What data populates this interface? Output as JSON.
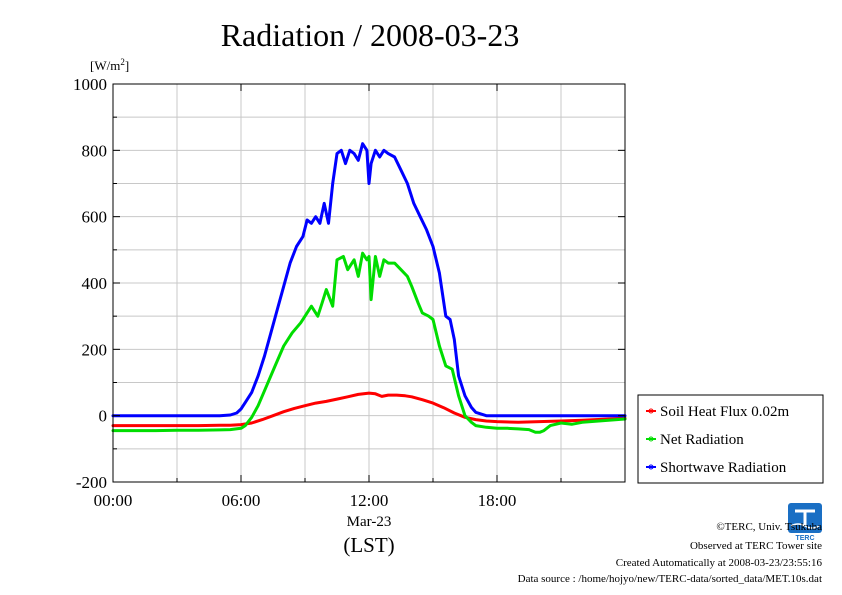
{
  "chart_data": {
    "type": "line",
    "title": "Radiation / 2008-03-23",
    "ylabel_unit": "[W/m",
    "ylabel_unit_sup": "2",
    "ylabel_unit_close": "]",
    "xlabel_date": "Mar-23",
    "xlabel": "(LST)",
    "x_range_hours": [
      0,
      24
    ],
    "ylim": [
      -200,
      1000
    ],
    "x_ticks": [
      {
        "hour": 0,
        "label": "00:00"
      },
      {
        "hour": 6,
        "label": "06:00"
      },
      {
        "hour": 12,
        "label": "12:00"
      },
      {
        "hour": 18,
        "label": "18:00"
      }
    ],
    "y_ticks": [
      {
        "value": 1000,
        "label": "1000"
      },
      {
        "value": 800,
        "label": "800"
      },
      {
        "value": 600,
        "label": "600"
      },
      {
        "value": 400,
        "label": "400"
      },
      {
        "value": 200,
        "label": "200"
      },
      {
        "value": 0,
        "label": "0"
      },
      {
        "value": -200,
        "label": "-200"
      }
    ],
    "grid": true,
    "legend_position": "right-bottom, outside plot",
    "series": [
      {
        "name": "Soil Heat Flux 0.02m",
        "color": "#ff0000",
        "points": [
          [
            0,
            -30
          ],
          [
            2,
            -30
          ],
          [
            4,
            -30
          ],
          [
            5,
            -29
          ],
          [
            5.5,
            -29
          ],
          [
            6,
            -27
          ],
          [
            6.5,
            -22
          ],
          [
            7,
            -12
          ],
          [
            7.5,
            0
          ],
          [
            8,
            12
          ],
          [
            8.5,
            22
          ],
          [
            9,
            30
          ],
          [
            9.5,
            38
          ],
          [
            10,
            43
          ],
          [
            10.5,
            50
          ],
          [
            11,
            57
          ],
          [
            11.5,
            64
          ],
          [
            12,
            68
          ],
          [
            12.3,
            66
          ],
          [
            12.6,
            58
          ],
          [
            12.9,
            62
          ],
          [
            13.3,
            62
          ],
          [
            13.7,
            60
          ],
          [
            14,
            57
          ],
          [
            14.5,
            48
          ],
          [
            15,
            38
          ],
          [
            15.5,
            24
          ],
          [
            16,
            8
          ],
          [
            16.5,
            -5
          ],
          [
            17,
            -12
          ],
          [
            17.5,
            -16
          ],
          [
            18,
            -18
          ],
          [
            19,
            -20
          ],
          [
            20,
            -18
          ],
          [
            21,
            -16
          ],
          [
            22,
            -14
          ],
          [
            23,
            -11
          ],
          [
            24,
            -8
          ]
        ]
      },
      {
        "name": "Net Radiation",
        "color": "#00dd00",
        "points": [
          [
            0,
            -45
          ],
          [
            1,
            -45
          ],
          [
            2,
            -45
          ],
          [
            3,
            -44
          ],
          [
            4,
            -44
          ],
          [
            5,
            -43
          ],
          [
            5.5,
            -42
          ],
          [
            6,
            -38
          ],
          [
            6.2,
            -30
          ],
          [
            6.5,
            -5
          ],
          [
            6.8,
            30
          ],
          [
            7.2,
            90
          ],
          [
            7.6,
            150
          ],
          [
            8,
            210
          ],
          [
            8.4,
            250
          ],
          [
            8.8,
            280
          ],
          [
            9,
            300
          ],
          [
            9.3,
            330
          ],
          [
            9.6,
            300
          ],
          [
            9.8,
            340
          ],
          [
            10,
            380
          ],
          [
            10.3,
            330
          ],
          [
            10.5,
            470
          ],
          [
            10.8,
            480
          ],
          [
            11,
            440
          ],
          [
            11.3,
            470
          ],
          [
            11.5,
            420
          ],
          [
            11.7,
            490
          ],
          [
            11.9,
            470
          ],
          [
            12,
            480
          ],
          [
            12.1,
            350
          ],
          [
            12.3,
            480
          ],
          [
            12.5,
            420
          ],
          [
            12.7,
            470
          ],
          [
            12.9,
            460
          ],
          [
            13.2,
            460
          ],
          [
            13.5,
            440
          ],
          [
            13.8,
            420
          ],
          [
            14,
            390
          ],
          [
            14.3,
            340
          ],
          [
            14.5,
            310
          ],
          [
            14.8,
            300
          ],
          [
            15,
            290
          ],
          [
            15.3,
            210
          ],
          [
            15.6,
            150
          ],
          [
            15.9,
            140
          ],
          [
            16.2,
            60
          ],
          [
            16.5,
            0
          ],
          [
            16.8,
            -20
          ],
          [
            17,
            -30
          ],
          [
            17.5,
            -35
          ],
          [
            18,
            -38
          ],
          [
            18.5,
            -38
          ],
          [
            19,
            -40
          ],
          [
            19.5,
            -42
          ],
          [
            19.8,
            -50
          ],
          [
            20,
            -50
          ],
          [
            20.2,
            -45
          ],
          [
            20.5,
            -30
          ],
          [
            21,
            -22
          ],
          [
            21.5,
            -26
          ],
          [
            22,
            -20
          ],
          [
            23,
            -15
          ],
          [
            24,
            -10
          ]
        ]
      },
      {
        "name": "Shortwave Radiation",
        "color": "#0000ff",
        "points": [
          [
            0,
            0
          ],
          [
            1,
            0
          ],
          [
            2,
            0
          ],
          [
            3,
            0
          ],
          [
            4,
            0
          ],
          [
            5,
            0
          ],
          [
            5.5,
            2
          ],
          [
            5.8,
            8
          ],
          [
            6,
            20
          ],
          [
            6.2,
            40
          ],
          [
            6.5,
            70
          ],
          [
            6.8,
            120
          ],
          [
            7.1,
            180
          ],
          [
            7.4,
            250
          ],
          [
            7.7,
            320
          ],
          [
            8,
            390
          ],
          [
            8.3,
            460
          ],
          [
            8.6,
            510
          ],
          [
            8.9,
            540
          ],
          [
            9.1,
            590
          ],
          [
            9.3,
            580
          ],
          [
            9.5,
            600
          ],
          [
            9.7,
            580
          ],
          [
            9.9,
            640
          ],
          [
            10.1,
            580
          ],
          [
            10.3,
            700
          ],
          [
            10.5,
            790
          ],
          [
            10.7,
            800
          ],
          [
            10.9,
            760
          ],
          [
            11.1,
            800
          ],
          [
            11.3,
            790
          ],
          [
            11.5,
            770
          ],
          [
            11.7,
            820
          ],
          [
            11.9,
            800
          ],
          [
            12,
            700
          ],
          [
            12.1,
            760
          ],
          [
            12.3,
            800
          ],
          [
            12.5,
            780
          ],
          [
            12.7,
            800
          ],
          [
            12.9,
            790
          ],
          [
            13.2,
            780
          ],
          [
            13.5,
            740
          ],
          [
            13.8,
            700
          ],
          [
            14.1,
            640
          ],
          [
            14.4,
            600
          ],
          [
            14.7,
            560
          ],
          [
            15,
            510
          ],
          [
            15.3,
            430
          ],
          [
            15.6,
            300
          ],
          [
            15.8,
            290
          ],
          [
            16,
            230
          ],
          [
            16.2,
            120
          ],
          [
            16.5,
            60
          ],
          [
            16.8,
            25
          ],
          [
            17,
            10
          ],
          [
            17.5,
            0
          ],
          [
            18,
            0
          ],
          [
            19,
            0
          ],
          [
            20,
            0
          ],
          [
            21,
            0
          ],
          [
            22,
            0
          ],
          [
            23,
            0
          ],
          [
            24,
            0
          ]
        ]
      }
    ]
  },
  "footer": {
    "copyright": "©TERC, Univ. Tsukuba",
    "observed": "Observed at TERC Tower site",
    "created": "Created Automatically at 2008-03-23/23:55:16",
    "source": "Data source : /home/hojyo/new/TERC-data/sorted_data/MET.10s.dat",
    "logo_text": "TERC"
  }
}
